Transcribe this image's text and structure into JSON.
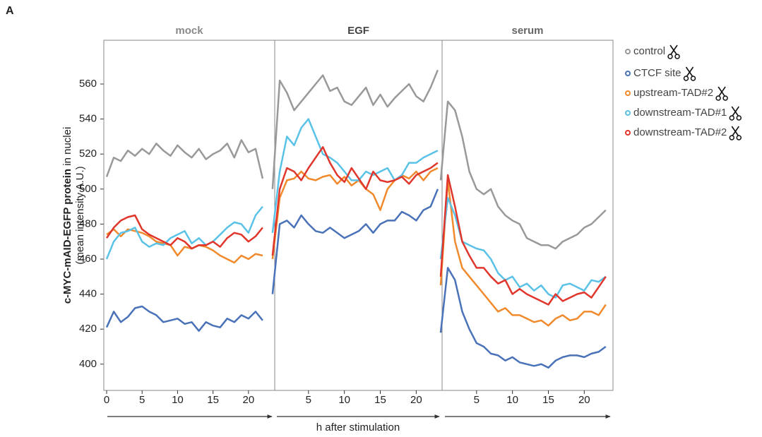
{
  "panel_label": "A",
  "y_axis": {
    "label_bold": "c-MYC-mAID-EGFP protein",
    "label_rest": " in nuclei",
    "label_unit": "(mean intensity A.U.)"
  },
  "xlabel": "h after stimulation",
  "chart_data": [
    {
      "type": "line",
      "title": "mock",
      "title_color": "#8a8a8a",
      "x": [
        0,
        1,
        2,
        3,
        4,
        5,
        6,
        7,
        8,
        9,
        10,
        11,
        12,
        13,
        14,
        15,
        16,
        17,
        18,
        19,
        20,
        21,
        22
      ],
      "xlim": [
        -0.4,
        23.7
      ],
      "xticks": [
        0,
        5,
        10,
        15,
        20
      ],
      "ylim": [
        385,
        585
      ],
      "yticks": [
        400,
        420,
        440,
        460,
        480,
        500,
        520,
        540,
        560
      ],
      "series": [
        {
          "name": "control",
          "color": "#999999",
          "values": [
            507,
            518,
            516,
            522,
            519,
            523,
            520,
            526,
            522,
            519,
            525,
            521,
            518,
            523,
            517,
            520,
            522,
            526,
            518,
            528,
            521,
            523,
            506
          ]
        },
        {
          "name": "CTCF site",
          "color": "#4a72b8",
          "values": [
            421,
            430,
            424,
            427,
            432,
            433,
            430,
            428,
            424,
            425,
            426,
            423,
            424,
            419,
            424,
            422,
            421,
            426,
            424,
            428,
            426,
            430,
            425
          ]
        },
        {
          "name": "upstream-TAD#2",
          "color": "#f08a2c",
          "values": [
            474,
            477,
            473,
            477,
            476,
            475,
            473,
            470,
            469,
            468,
            462,
            467,
            466,
            468,
            467,
            465,
            462,
            460,
            458,
            462,
            460,
            463,
            462
          ]
        },
        {
          "name": "downstream-TAD#1",
          "color": "#5bc2e7",
          "values": [
            460,
            470,
            475,
            476,
            478,
            470,
            467,
            469,
            468,
            472,
            474,
            476,
            469,
            472,
            468,
            470,
            474,
            478,
            481,
            480,
            475,
            485,
            490
          ]
        },
        {
          "name": "downstream-TAD#2",
          "color": "#e0362c",
          "values": [
            472,
            478,
            482,
            484,
            485,
            477,
            474,
            472,
            470,
            468,
            472,
            470,
            466,
            468,
            468,
            470,
            467,
            472,
            475,
            474,
            470,
            473,
            478
          ]
        }
      ]
    },
    {
      "type": "line",
      "title": "EGF",
      "title_color": "#444444",
      "x": [
        0,
        1,
        2,
        3,
        4,
        5,
        6,
        7,
        8,
        9,
        10,
        11,
        12,
        13,
        14,
        15,
        16,
        17,
        18,
        19,
        20,
        21,
        22,
        23
      ],
      "xlim": [
        0.3,
        23.6
      ],
      "xticks": [
        5,
        10,
        15,
        20
      ],
      "series": [
        {
          "name": "control",
          "color": "#999999",
          "values": [
            500,
            562,
            555,
            545,
            550,
            555,
            560,
            565,
            556,
            558,
            550,
            548,
            553,
            558,
            548,
            554,
            547,
            552,
            556,
            560,
            553,
            550,
            558,
            568
          ]
        },
        {
          "name": "CTCF site",
          "color": "#4a72b8",
          "values": [
            440,
            480,
            482,
            478,
            485,
            480,
            476,
            475,
            478,
            475,
            472,
            474,
            476,
            480,
            475,
            480,
            482,
            482,
            487,
            485,
            482,
            488,
            490,
            500
          ]
        },
        {
          "name": "upstream-TAD#2",
          "color": "#f08a2c",
          "values": [
            460,
            495,
            505,
            506,
            510,
            506,
            505,
            507,
            508,
            503,
            507,
            502,
            505,
            500,
            497,
            488,
            500,
            505,
            508,
            506,
            510,
            505,
            510,
            512
          ]
        },
        {
          "name": "downstream-TAD#1",
          "color": "#5bc2e7",
          "values": [
            475,
            510,
            530,
            525,
            535,
            540,
            530,
            520,
            518,
            515,
            510,
            505,
            505,
            510,
            508,
            510,
            512,
            505,
            508,
            515,
            515,
            518,
            520,
            522
          ]
        },
        {
          "name": "downstream-TAD#2",
          "color": "#e0362c",
          "values": [
            462,
            500,
            512,
            510,
            505,
            512,
            518,
            524,
            515,
            508,
            504,
            512,
            506,
            500,
            510,
            505,
            504,
            505,
            507,
            503,
            508,
            510,
            512,
            515
          ]
        }
      ]
    },
    {
      "type": "line",
      "title": "serum",
      "title_color": "#666666",
      "x": [
        0,
        1,
        2,
        3,
        4,
        5,
        6,
        7,
        8,
        9,
        10,
        11,
        12,
        13,
        14,
        15,
        16,
        17,
        18,
        19,
        20,
        21,
        22,
        23
      ],
      "xlim": [
        0.2,
        24.0
      ],
      "xticks": [
        5,
        10,
        15,
        20
      ],
      "series": [
        {
          "name": "control",
          "color": "#999999",
          "values": [
            505,
            550,
            545,
            530,
            510,
            500,
            497,
            500,
            490,
            485,
            482,
            480,
            472,
            470,
            468,
            468,
            466,
            470,
            472,
            474,
            478,
            480,
            484,
            488
          ]
        },
        {
          "name": "CTCF site",
          "color": "#4a72b8",
          "values": [
            418,
            455,
            448,
            430,
            420,
            412,
            410,
            406,
            405,
            402,
            404,
            401,
            400,
            399,
            400,
            398,
            402,
            404,
            405,
            405,
            404,
            406,
            407,
            410
          ]
        },
        {
          "name": "upstream-TAD#2",
          "color": "#f08a2c",
          "values": [
            445,
            505,
            470,
            455,
            450,
            445,
            440,
            435,
            430,
            432,
            428,
            428,
            426,
            424,
            425,
            422,
            426,
            428,
            425,
            426,
            430,
            430,
            428,
            434
          ]
        },
        {
          "name": "downstream-TAD#1",
          "color": "#5bc2e7",
          "values": [
            460,
            495,
            485,
            470,
            468,
            466,
            465,
            460,
            452,
            448,
            450,
            444,
            446,
            442,
            445,
            440,
            438,
            445,
            446,
            444,
            442,
            448,
            447,
            450
          ]
        },
        {
          "name": "downstream-TAD#2",
          "color": "#e0362c",
          "values": [
            450,
            508,
            490,
            470,
            462,
            455,
            455,
            450,
            446,
            448,
            440,
            443,
            440,
            438,
            436,
            434,
            440,
            436,
            438,
            440,
            441,
            438,
            444,
            450
          ]
        }
      ]
    }
  ]
}
